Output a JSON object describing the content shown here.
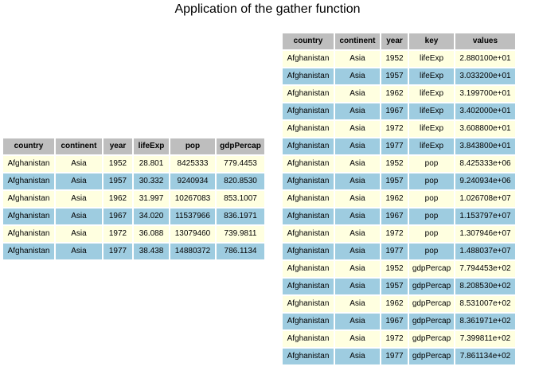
{
  "title": "Application of the gather function",
  "left_table": {
    "columns": [
      "country",
      "continent",
      "year",
      "lifeExp",
      "pop",
      "gdpPercap"
    ],
    "rows": [
      [
        "Afghanistan",
        "Asia",
        "1952",
        "28.801",
        "8425333",
        "779.4453"
      ],
      [
        "Afghanistan",
        "Asia",
        "1957",
        "30.332",
        "9240934",
        "820.8530"
      ],
      [
        "Afghanistan",
        "Asia",
        "1962",
        "31.997",
        "10267083",
        "853.1007"
      ],
      [
        "Afghanistan",
        "Asia",
        "1967",
        "34.020",
        "11537966",
        "836.1971"
      ],
      [
        "Afghanistan",
        "Asia",
        "1972",
        "36.088",
        "13079460",
        "739.9811"
      ],
      [
        "Afghanistan",
        "Asia",
        "1977",
        "38.438",
        "14880372",
        "786.1134"
      ]
    ]
  },
  "right_table": {
    "columns": [
      "country",
      "continent",
      "year",
      "key",
      "values"
    ],
    "rows": [
      [
        "Afghanistan",
        "Asia",
        "1952",
        "lifeExp",
        "2.880100e+01"
      ],
      [
        "Afghanistan",
        "Asia",
        "1957",
        "lifeExp",
        "3.033200e+01"
      ],
      [
        "Afghanistan",
        "Asia",
        "1962",
        "lifeExp",
        "3.199700e+01"
      ],
      [
        "Afghanistan",
        "Asia",
        "1967",
        "lifeExp",
        "3.402000e+01"
      ],
      [
        "Afghanistan",
        "Asia",
        "1972",
        "lifeExp",
        "3.608800e+01"
      ],
      [
        "Afghanistan",
        "Asia",
        "1977",
        "lifeExp",
        "3.843800e+01"
      ],
      [
        "Afghanistan",
        "Asia",
        "1952",
        "pop",
        "8.425333e+06"
      ],
      [
        "Afghanistan",
        "Asia",
        "1957",
        "pop",
        "9.240934e+06"
      ],
      [
        "Afghanistan",
        "Asia",
        "1962",
        "pop",
        "1.026708e+07"
      ],
      [
        "Afghanistan",
        "Asia",
        "1967",
        "pop",
        "1.153797e+07"
      ],
      [
        "Afghanistan",
        "Asia",
        "1972",
        "pop",
        "1.307946e+07"
      ],
      [
        "Afghanistan",
        "Asia",
        "1977",
        "pop",
        "1.488037e+07"
      ],
      [
        "Afghanistan",
        "Asia",
        "1952",
        "gdpPercap",
        "7.794453e+02"
      ],
      [
        "Afghanistan",
        "Asia",
        "1957",
        "gdpPercap",
        "8.208530e+02"
      ],
      [
        "Afghanistan",
        "Asia",
        "1962",
        "gdpPercap",
        "8.531007e+02"
      ],
      [
        "Afghanistan",
        "Asia",
        "1967",
        "gdpPercap",
        "8.361971e+02"
      ],
      [
        "Afghanistan",
        "Asia",
        "1972",
        "gdpPercap",
        "7.399811e+02"
      ],
      [
        "Afghanistan",
        "Asia",
        "1977",
        "gdpPercap",
        "7.861134e+02"
      ]
    ]
  }
}
